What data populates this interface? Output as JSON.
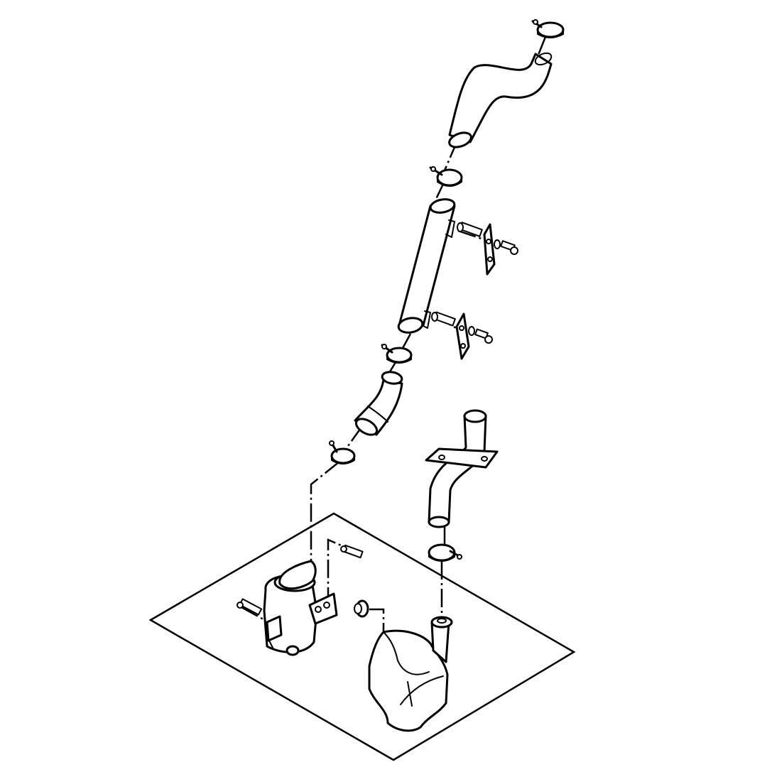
{
  "diagram": {
    "parts": [
      {
        "id": "tailpipe",
        "icon": "bent-tube-icon"
      },
      {
        "id": "clamp-top",
        "icon": "hose-clamp-icon"
      },
      {
        "id": "clamp-upper",
        "icon": "hose-clamp-icon"
      },
      {
        "id": "straight-pipe",
        "icon": "tube-icon"
      },
      {
        "id": "bracket-upper",
        "icon": "mounting-plate-icon"
      },
      {
        "id": "bracket-lower",
        "icon": "mounting-plate-icon"
      },
      {
        "id": "bolt-set-upper",
        "icon": "bolt-icon"
      },
      {
        "id": "bolt-set-lower",
        "icon": "bolt-icon"
      },
      {
        "id": "clamp-middle",
        "icon": "hose-clamp-icon"
      },
      {
        "id": "elbow-pipe",
        "icon": "elbow-tube-icon"
      },
      {
        "id": "clamp-lower-left",
        "icon": "hose-clamp-icon"
      },
      {
        "id": "flanged-pipe",
        "icon": "flanged-tube-icon"
      },
      {
        "id": "clamp-lower-right",
        "icon": "hose-clamp-icon"
      },
      {
        "id": "muffler",
        "icon": "muffler-icon"
      },
      {
        "id": "catalyst-housing",
        "icon": "catalyst-icon"
      },
      {
        "id": "grommet",
        "icon": "grommet-icon"
      },
      {
        "id": "mount-bolts",
        "icon": "bolt-icon"
      },
      {
        "id": "base-plane",
        "icon": "ground-plane-icon"
      }
    ],
    "colors": {
      "line": "#000000",
      "background": "#ffffff"
    }
  }
}
